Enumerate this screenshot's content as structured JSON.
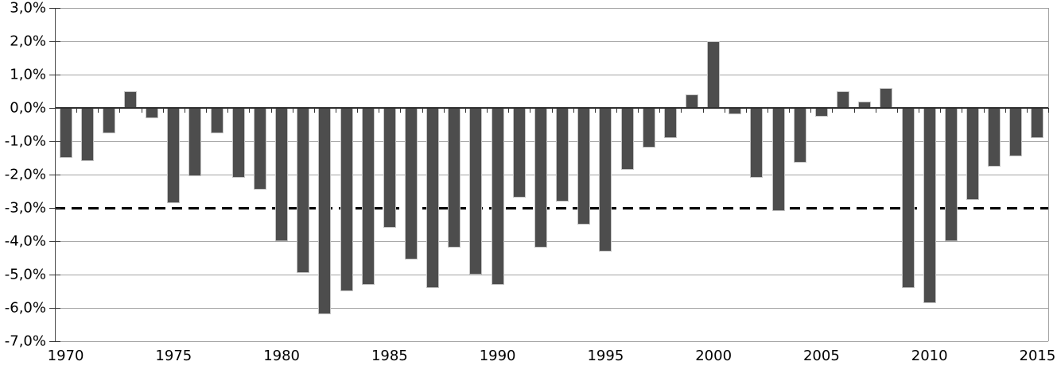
{
  "chart_data": {
    "type": "bar",
    "title": "",
    "xlabel": "",
    "ylabel": "",
    "categories": [
      1970,
      1971,
      1972,
      1973,
      1974,
      1975,
      1976,
      1977,
      1978,
      1979,
      1980,
      1981,
      1982,
      1983,
      1984,
      1985,
      1986,
      1987,
      1988,
      1989,
      1990,
      1991,
      1992,
      1993,
      1994,
      1995,
      1996,
      1997,
      1998,
      1999,
      2000,
      2001,
      2002,
      2003,
      2004,
      2005,
      2006,
      2007,
      2008,
      2009,
      2010,
      2011,
      2012,
      2013,
      2014,
      2015
    ],
    "values": [
      -1.5,
      -1.6,
      -0.75,
      0.5,
      -0.3,
      -2.85,
      -2.05,
      -0.75,
      -2.1,
      -2.45,
      -4.0,
      -4.95,
      -6.2,
      -5.5,
      -5.3,
      -3.6,
      -4.55,
      -5.4,
      -4.2,
      -5.0,
      -5.3,
      -2.7,
      -4.2,
      -2.8,
      -3.5,
      -4.3,
      -1.85,
      -1.2,
      -0.9,
      0.4,
      2.0,
      -0.2,
      -2.1,
      -3.1,
      -1.65,
      -0.25,
      0.5,
      0.2,
      0.6,
      -5.4,
      -5.85,
      -4.0,
      -2.75,
      -1.75,
      -1.45,
      -0.9
    ],
    "value_unit": "%",
    "ylim": [
      -7.0,
      3.0
    ],
    "y_tick_values": [
      3,
      2,
      1,
      0,
      -1,
      -2,
      -3,
      -4,
      -5,
      -6,
      -7
    ],
    "y_tick_labels": [
      "3,0%",
      "2,0%",
      "1,0%",
      "0,0%",
      "-1,0%",
      "-2,0%",
      "-3,0%",
      "-4,0%",
      "-5,0%",
      "-6,0%",
      "-7,0%"
    ],
    "x_tick_years": [
      1970,
      1975,
      1980,
      1985,
      1990,
      1995,
      2000,
      2005,
      2010,
      2015
    ],
    "x_tick_labels": [
      "1970",
      "1975",
      "1980",
      "1985",
      "1990",
      "1995",
      "2000",
      "2005",
      "2010",
      "2015"
    ],
    "reference_line": {
      "y": -3.0,
      "style": "dashed",
      "color": "#000000"
    },
    "grid": "horizontal",
    "legend": "none",
    "decimal_separator": ","
  },
  "colors": {
    "bar": "#4d4d4d",
    "bar_edge": "#c4c4c4",
    "gridline": "#a3a3a3",
    "axis": "#2f2f2f",
    "reference_line": "#000000",
    "background": "#ffffff",
    "label_text": "#000000"
  }
}
